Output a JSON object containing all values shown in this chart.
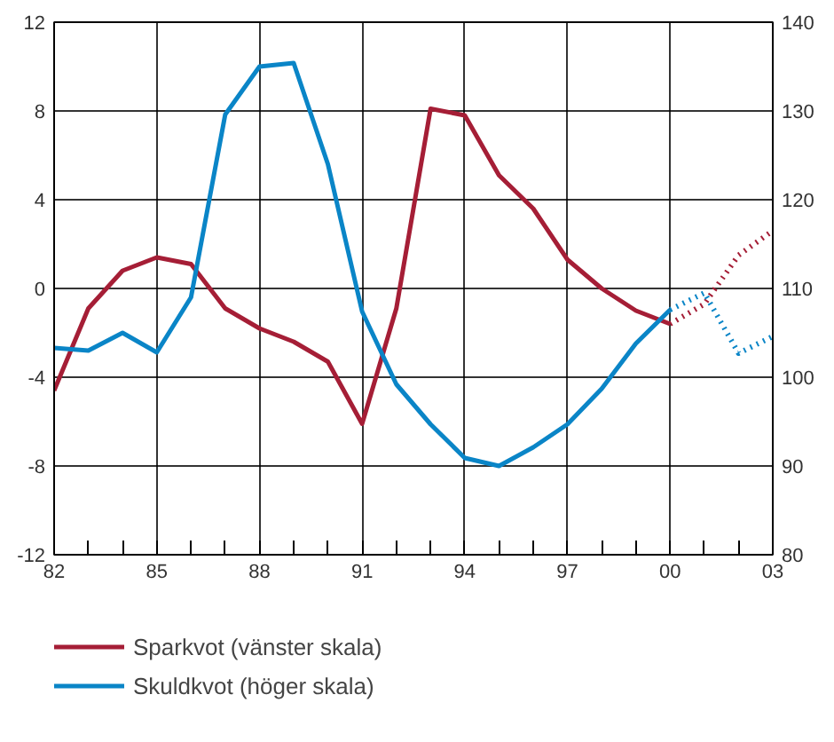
{
  "chart_data": {
    "type": "line",
    "x": [
      1982,
      1983,
      1984,
      1985,
      1986,
      1987,
      1988,
      1989,
      1990,
      1991,
      1992,
      1993,
      1994,
      1995,
      1996,
      1997,
      1998,
      1999,
      2000,
      2001,
      2002,
      2003
    ],
    "series": [
      {
        "name": "Sparkvot (vänster skala)",
        "color": "#a51e36",
        "line_style": "solid",
        "values": [
          -4.6,
          -0.9,
          0.8,
          1.4,
          1.1,
          -0.9,
          -1.8,
          -2.4,
          -3.3,
          -6.1,
          -0.9,
          8.1,
          7.8,
          5.1,
          3.6,
          1.3,
          0.0,
          -1.0,
          -1.6,
          null,
          null,
          null
        ]
      },
      {
        "name": "Skuldkvot (höger skala)",
        "color": "#0a85c7",
        "axis": "y2",
        "line_style": "solid",
        "values": [
          103.3,
          103.0,
          105.0,
          102.8,
          109.0,
          129.6,
          135.0,
          135.4,
          124.0,
          107.4,
          99.2,
          94.7,
          90.9,
          90.0,
          92.1,
          94.7,
          98.7,
          103.8,
          107.6,
          null,
          null,
          null
        ]
      },
      {
        "color": "#a51e36",
        "line_style": "dotted",
        "values": [
          null,
          null,
          null,
          null,
          null,
          null,
          null,
          null,
          null,
          null,
          null,
          null,
          null,
          null,
          null,
          null,
          null,
          null,
          -1.6,
          -0.7,
          1.5,
          2.6
        ]
      },
      {
        "color": "#0a85c7",
        "axis": "y2",
        "line_style": "dotted",
        "values": [
          null,
          null,
          null,
          null,
          null,
          null,
          null,
          null,
          null,
          null,
          null,
          null,
          null,
          null,
          null,
          null,
          null,
          null,
          107.6,
          109.5,
          102.7,
          104.6
        ]
      }
    ],
    "xlim": [
      1982,
      2003
    ],
    "xticks": [
      {
        "value": 1982,
        "label": "82"
      },
      {
        "value": 1983,
        "label": null
      },
      {
        "value": 1984,
        "label": null
      },
      {
        "value": 1985,
        "label": "85"
      },
      {
        "value": 1986,
        "label": null
      },
      {
        "value": 1987,
        "label": null
      },
      {
        "value": 1988,
        "label": "88"
      },
      {
        "value": 1989,
        "label": null
      },
      {
        "value": 1990,
        "label": null
      },
      {
        "value": 1991,
        "label": "91"
      },
      {
        "value": 1992,
        "label": null
      },
      {
        "value": 1993,
        "label": null
      },
      {
        "value": 1994,
        "label": "94"
      },
      {
        "value": 1995,
        "label": null
      },
      {
        "value": 1996,
        "label": null
      },
      {
        "value": 1997,
        "label": "97"
      },
      {
        "value": 1998,
        "label": null
      },
      {
        "value": 1999,
        "label": null
      },
      {
        "value": 2000,
        "label": "00"
      },
      {
        "value": 2001,
        "label": null
      },
      {
        "value": 2002,
        "label": null
      },
      {
        "value": 2003,
        "label": "03"
      }
    ],
    "ylim": [
      -12,
      12
    ],
    "yticks": [
      -12,
      -8,
      -4,
      0,
      4,
      8,
      12
    ],
    "y2lim": [
      80,
      140
    ],
    "y2ticks": [
      80,
      90,
      100,
      110,
      120,
      130,
      140
    ],
    "grid": true,
    "legend": "bottom"
  }
}
